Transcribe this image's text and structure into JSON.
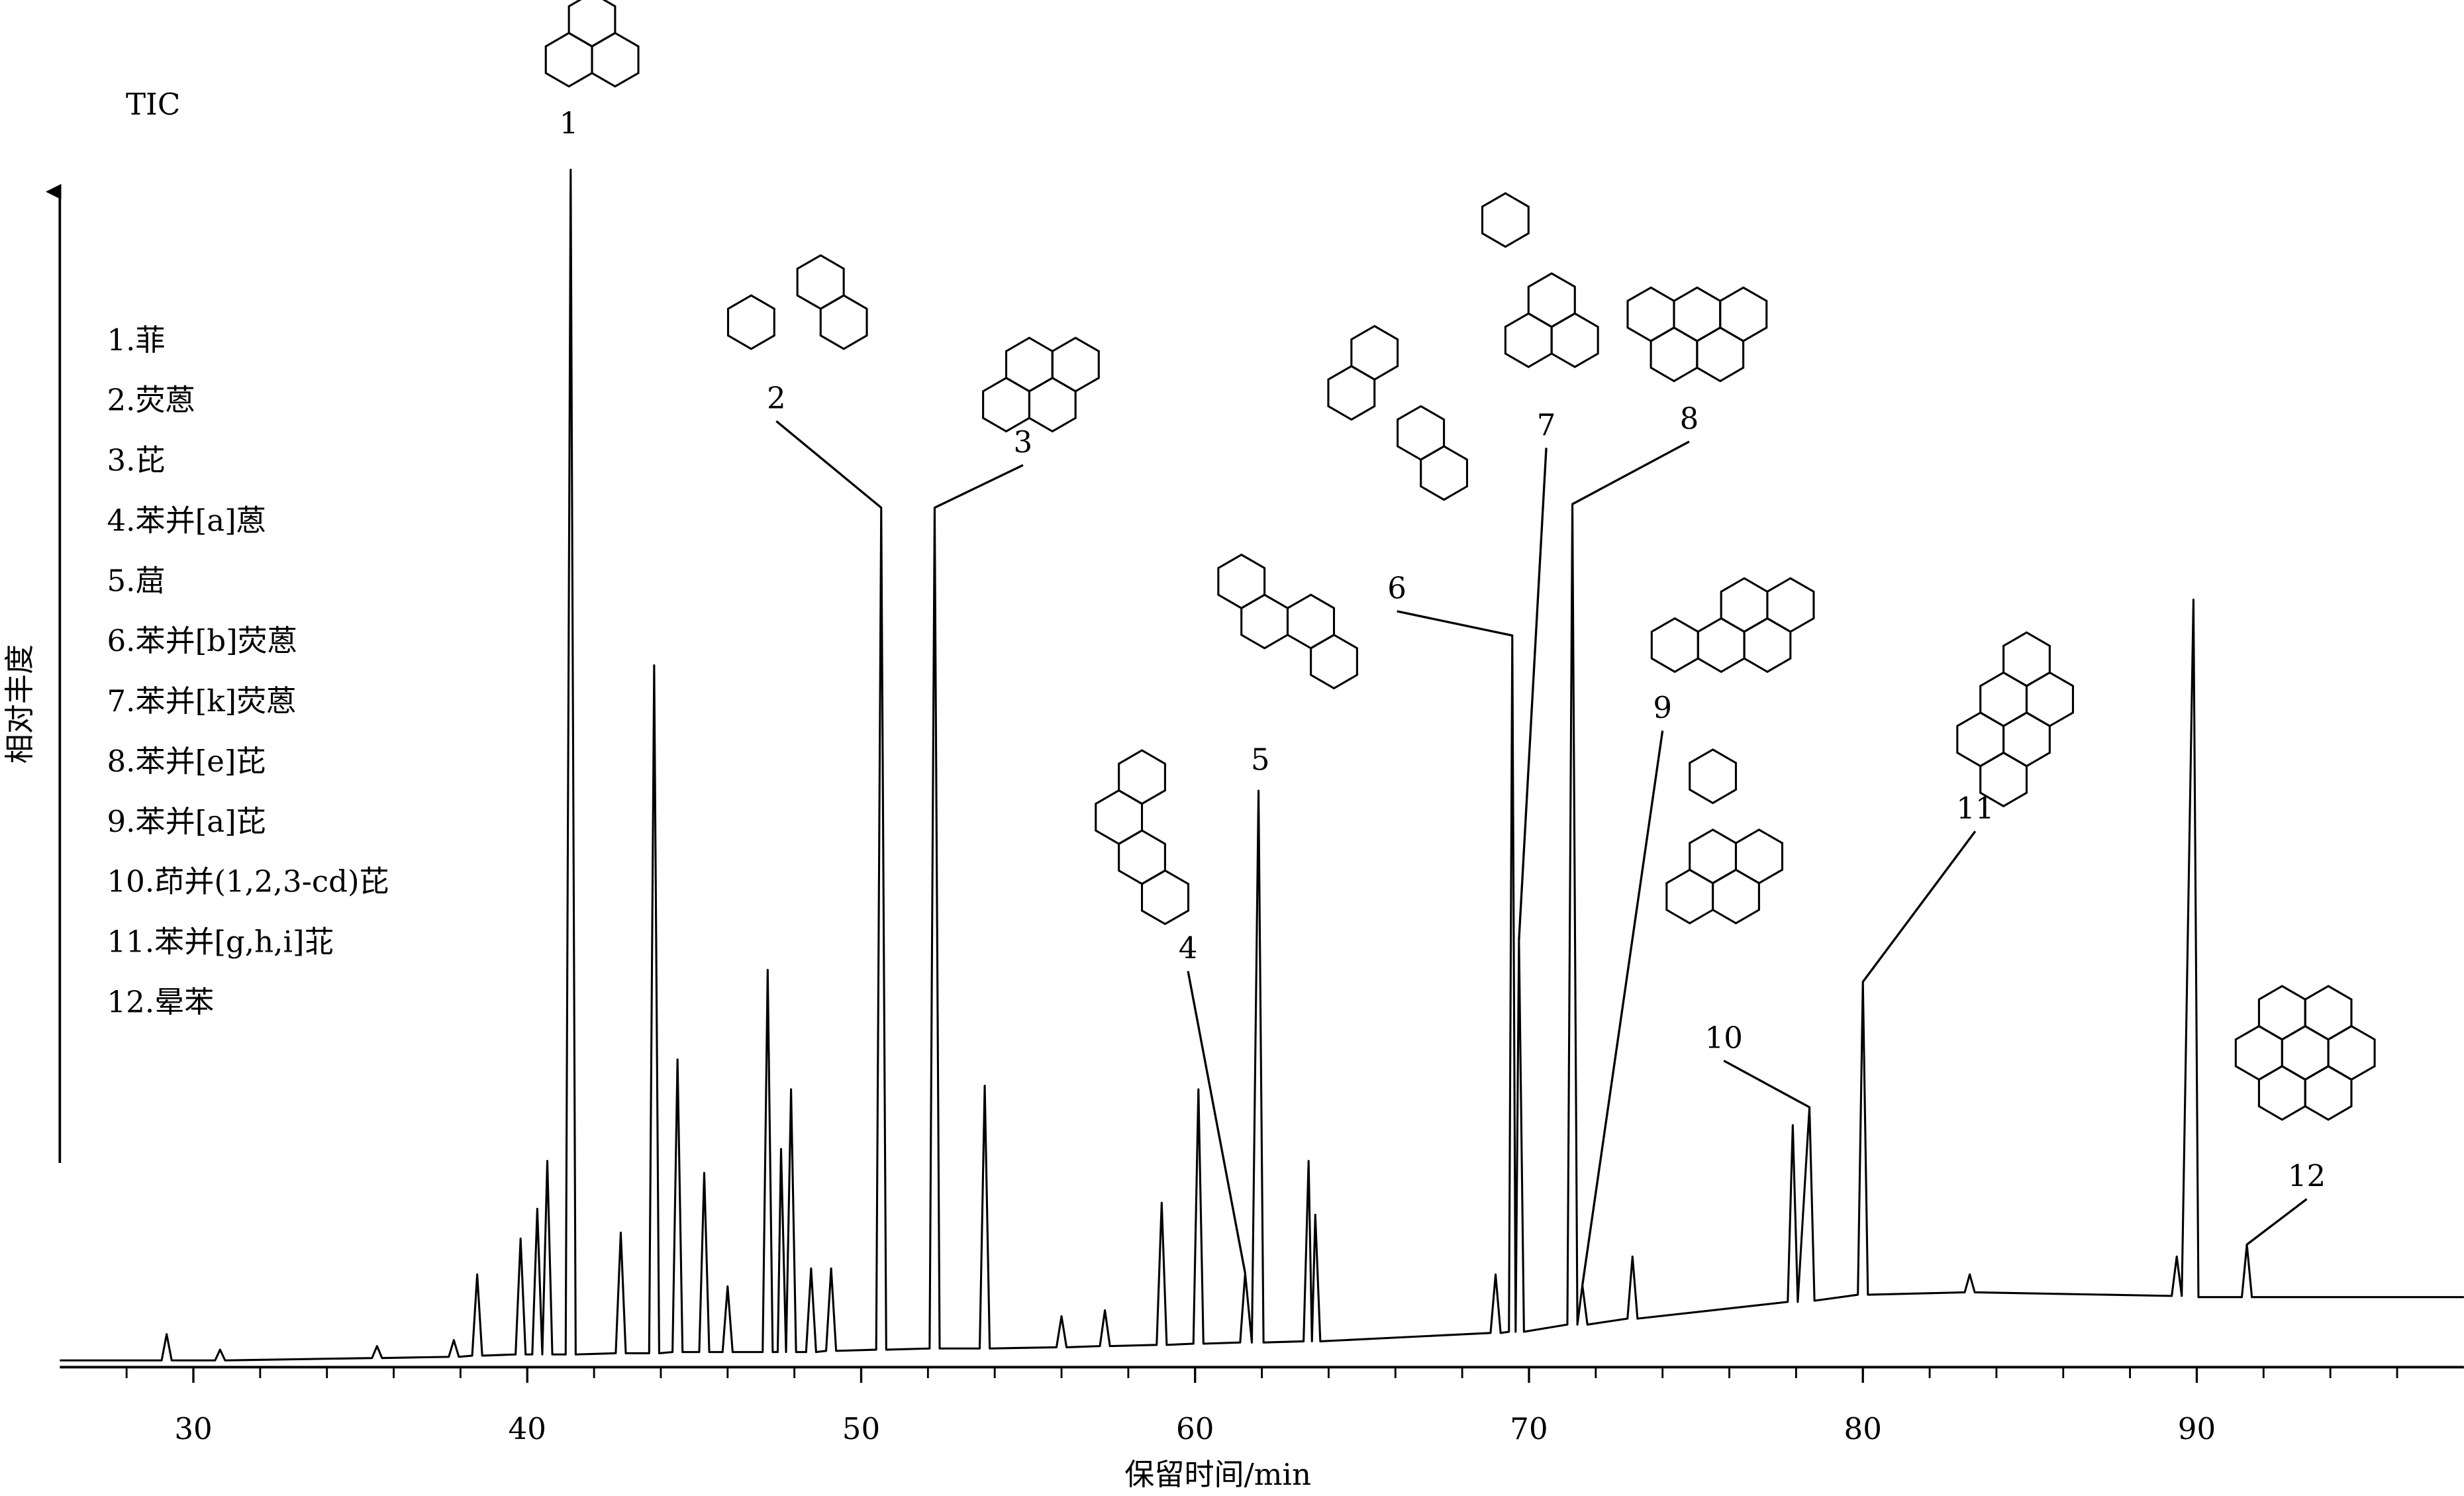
{
  "chart_data": {
    "type": "line",
    "trace_label": "TIC",
    "x_axis_label": "保留时间/min",
    "y_axis_label": "相对丰度",
    "legend_items": [
      "1.菲",
      "2.荧蒽",
      "3.芘",
      "4.苯并[a]蒽",
      "5.䓛",
      "6.苯并[b]荧蒽",
      "7.苯并[k]荧蒽",
      "8.苯并[e]芘",
      "9.苯并[a]芘",
      "10.茚并(1,2,3-cd)芘",
      "11.苯并[g,h,i]苝",
      "12.晕苯"
    ],
    "color": "#000000",
    "xlim": [
      26,
      98
    ],
    "ylim": [
      0,
      100
    ],
    "xticks": [
      30,
      40,
      50,
      60,
      70,
      80,
      90
    ],
    "xminorticks": [
      28,
      32,
      34,
      36,
      38,
      42,
      44,
      46,
      48,
      52,
      54,
      56,
      58,
      62,
      64,
      66,
      68,
      72,
      74,
      76,
      78,
      82,
      84,
      86,
      88,
      92,
      94,
      96
    ],
    "x": [
      26,
      29.05,
      29.2,
      29.35,
      30.65,
      30.8,
      30.95,
      35.35,
      35.5,
      35.65,
      37.65,
      37.8,
      37.95,
      38.35,
      38.5,
      38.65,
      39.65,
      39.8,
      39.95,
      40.15,
      40.3,
      40.45,
      40.6,
      40.75,
      41.15,
      41.3,
      41.45,
      42.65,
      42.8,
      42.95,
      43.65,
      43.8,
      43.95,
      44.35,
      44.5,
      44.65,
      45.15,
      45.3,
      45.45,
      45.85,
      46,
      46.15,
      47.05,
      47.2,
      47.35,
      47.5,
      47.6,
      47.75,
      47.9,
      48.05,
      48.35,
      48.5,
      48.65,
      48.95,
      49.1,
      49.25,
      50.45,
      50.6,
      50.75,
      52.05,
      52.2,
      52.35,
      53.55,
      53.7,
      53.85,
      55.85,
      56,
      56.15,
      57.15,
      57.3,
      57.45,
      58.85,
      59,
      59.15,
      59.95,
      60.1,
      60.25,
      61.35,
      61.5,
      61.7,
      61.9,
      62.05,
      63.25,
      63.4,
      63.5,
      63.6,
      63.75,
      68.85,
      69,
      69.15,
      69.4,
      69.5,
      69.6,
      69.7,
      69.85,
      71.15,
      71.3,
      71.45,
      71.6,
      71.75,
      72.95,
      73.1,
      73.25,
      77.75,
      77.9,
      78.05,
      78.4,
      78.55,
      79.85,
      80,
      80.15,
      83.05,
      83.2,
      83.35,
      89.25,
      89.4,
      89.55,
      89.9,
      90.05,
      91.35,
      91.5,
      91.65,
      98
    ],
    "values": [
      0.3,
      0.3,
      2.5,
      0.3,
      0.3,
      1.2,
      0.3,
      0.5,
      1.5,
      0.5,
      0.6,
      2,
      0.6,
      0.7,
      7.5,
      0.7,
      0.8,
      10.5,
      0.8,
      0.8,
      13,
      0.8,
      17,
      0.8,
      0.8,
      100,
      0.8,
      0.9,
      11,
      0.9,
      0.9,
      58.5,
      0.9,
      1,
      25.5,
      1,
      1,
      16,
      1,
      1,
      6.5,
      1,
      1,
      33,
      1,
      1,
      18,
      1,
      23,
      1,
      1,
      8,
      1,
      1.1,
      8,
      1.1,
      1.2,
      71.7,
      1.2,
      1.3,
      71.7,
      1.3,
      1.3,
      23.3,
      1.3,
      1.4,
      4,
      1.4,
      1.5,
      4.5,
      1.5,
      1.6,
      13.5,
      1.6,
      1.7,
      23,
      1.7,
      1.8,
      7.6,
      1.8,
      48,
      1.8,
      1.9,
      17,
      1.9,
      12.5,
      1.9,
      2.6,
      7.5,
      2.6,
      2.7,
      61,
      2.7,
      35.5,
      2.7,
      3.3,
      72,
      3.3,
      6.6,
      3.3,
      3.8,
      9,
      3.8,
      5.2,
      20,
      5.2,
      21.5,
      5.3,
      5.8,
      32,
      5.8,
      6,
      7.5,
      6,
      5.7,
      9,
      5.7,
      64,
      5.6,
      5.6,
      10,
      5.6,
      5.6
    ],
    "peaks": [
      {
        "label": "1",
        "x": 41.3,
        "y": 100
      },
      {
        "label": "2",
        "x": 50.6,
        "y": 71.7
      },
      {
        "label": "3",
        "x": 52.2,
        "y": 71.7
      },
      {
        "label": "4",
        "x": 61.5,
        "y": 7.6
      },
      {
        "label": "5",
        "x": 61.9,
        "y": 48
      },
      {
        "label": "6",
        "x": 69.5,
        "y": 61
      },
      {
        "label": "7",
        "x": 69.7,
        "y": 35.5
      },
      {
        "label": "8",
        "x": 71.3,
        "y": 72
      },
      {
        "label": "9",
        "x": 71.6,
        "y": 6.6
      },
      {
        "label": "10",
        "x": 78.4,
        "y": 21.5
      },
      {
        "label": "11",
        "x": 80,
        "y": 32
      },
      {
        "label": "12",
        "x": 91.5,
        "y": 10
      }
    ]
  }
}
